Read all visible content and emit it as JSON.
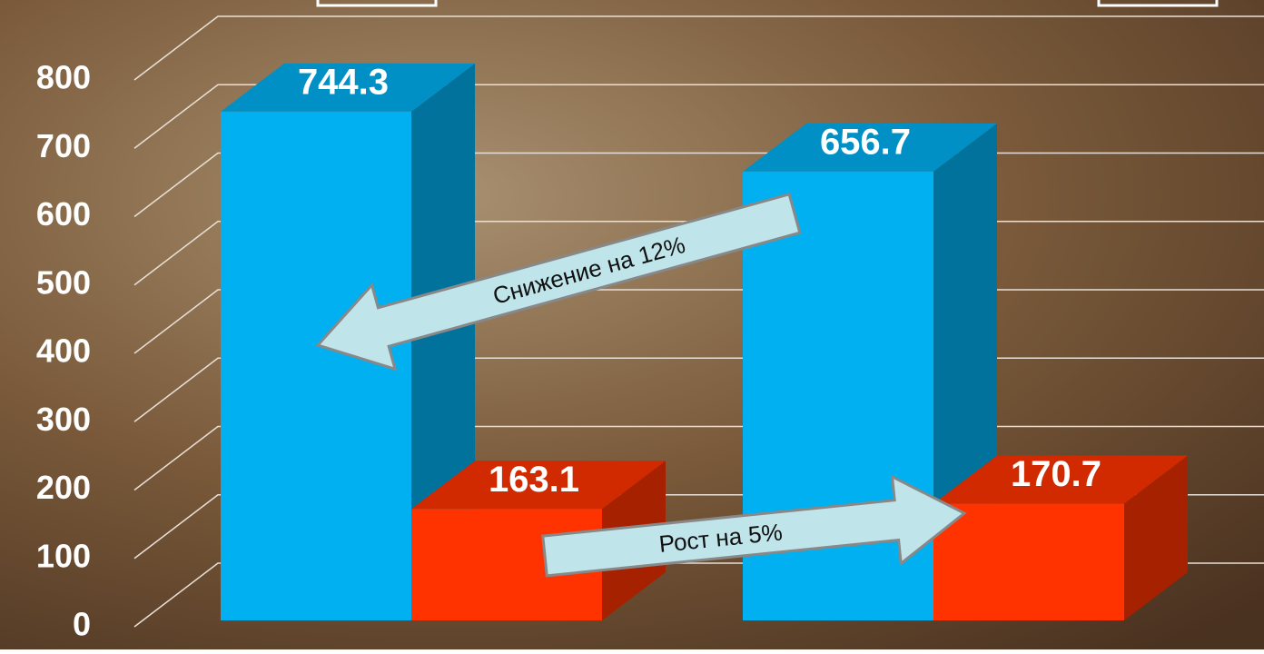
{
  "chart_data": {
    "type": "bar3d",
    "categories": [
      null,
      null
    ],
    "series": [
      {
        "color": "#00b0f0",
        "values": [
          744.3,
          656.7
        ]
      },
      {
        "color": "#ff3300",
        "values": [
          163.1,
          170.7
        ]
      }
    ],
    "ylim": [
      0,
      800
    ],
    "yticks": [
      0,
      100,
      200,
      300,
      400,
      500,
      600,
      700,
      800
    ],
    "grid": true,
    "annotations": [
      "Снижение на 12%",
      "Рост на 5%"
    ]
  }
}
